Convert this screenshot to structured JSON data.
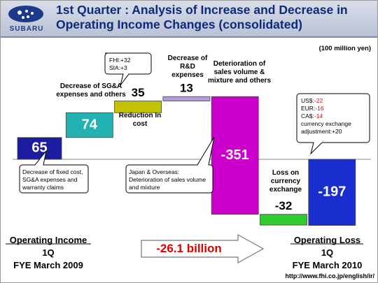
{
  "header": {
    "logo": "SUBARU",
    "title": "1st Quarter : Analysis of Increase and Decrease in Operating Income Changes (consolidated)"
  },
  "chart_data": {
    "type": "waterfall",
    "unit": "(100 million yen)",
    "categories": [
      null,
      "Decrease of SG&A expenses and others",
      "Reduction In cost",
      "Decrease of R&D expenses",
      "Deterioration of sales volume & mixture and others",
      "Loss on currency exchange",
      null
    ],
    "values": [
      65,
      74,
      35,
      13,
      -351,
      -32,
      -197
    ],
    "colors": [
      "#1c1ca0",
      "#22b2b2",
      "#c2c200",
      "#b49ce0",
      "#cc00cc",
      "#2ecc2e",
      "#1a2ed0"
    ]
  },
  "callouts": {
    "cost": [
      "FHI:+32",
      "SIA:+3"
    ],
    "fixed": "Decrease of fixed cost, SG&A expenses and warranty claims",
    "sales": "Japan & Overseas: Deterioration of sales volume and mixture",
    "currency": [
      {
        "label": "US$:",
        "value": "-22"
      },
      {
        "label": "EUR:",
        "value": "-16"
      },
      {
        "label": "CA$:",
        "value": "-14"
      },
      {
        "label": "currency exchange adjustment:+20",
        "value": null
      }
    ]
  },
  "start": {
    "title": "Operating Income",
    "period": "1Q",
    "year": "FYE March 2009"
  },
  "end": {
    "title": "Operating Loss",
    "period": "1Q",
    "year": "FYE March 2010"
  },
  "change": "-26.1 billion",
  "url": "http://www.fhi.co.jp/english/ir/"
}
